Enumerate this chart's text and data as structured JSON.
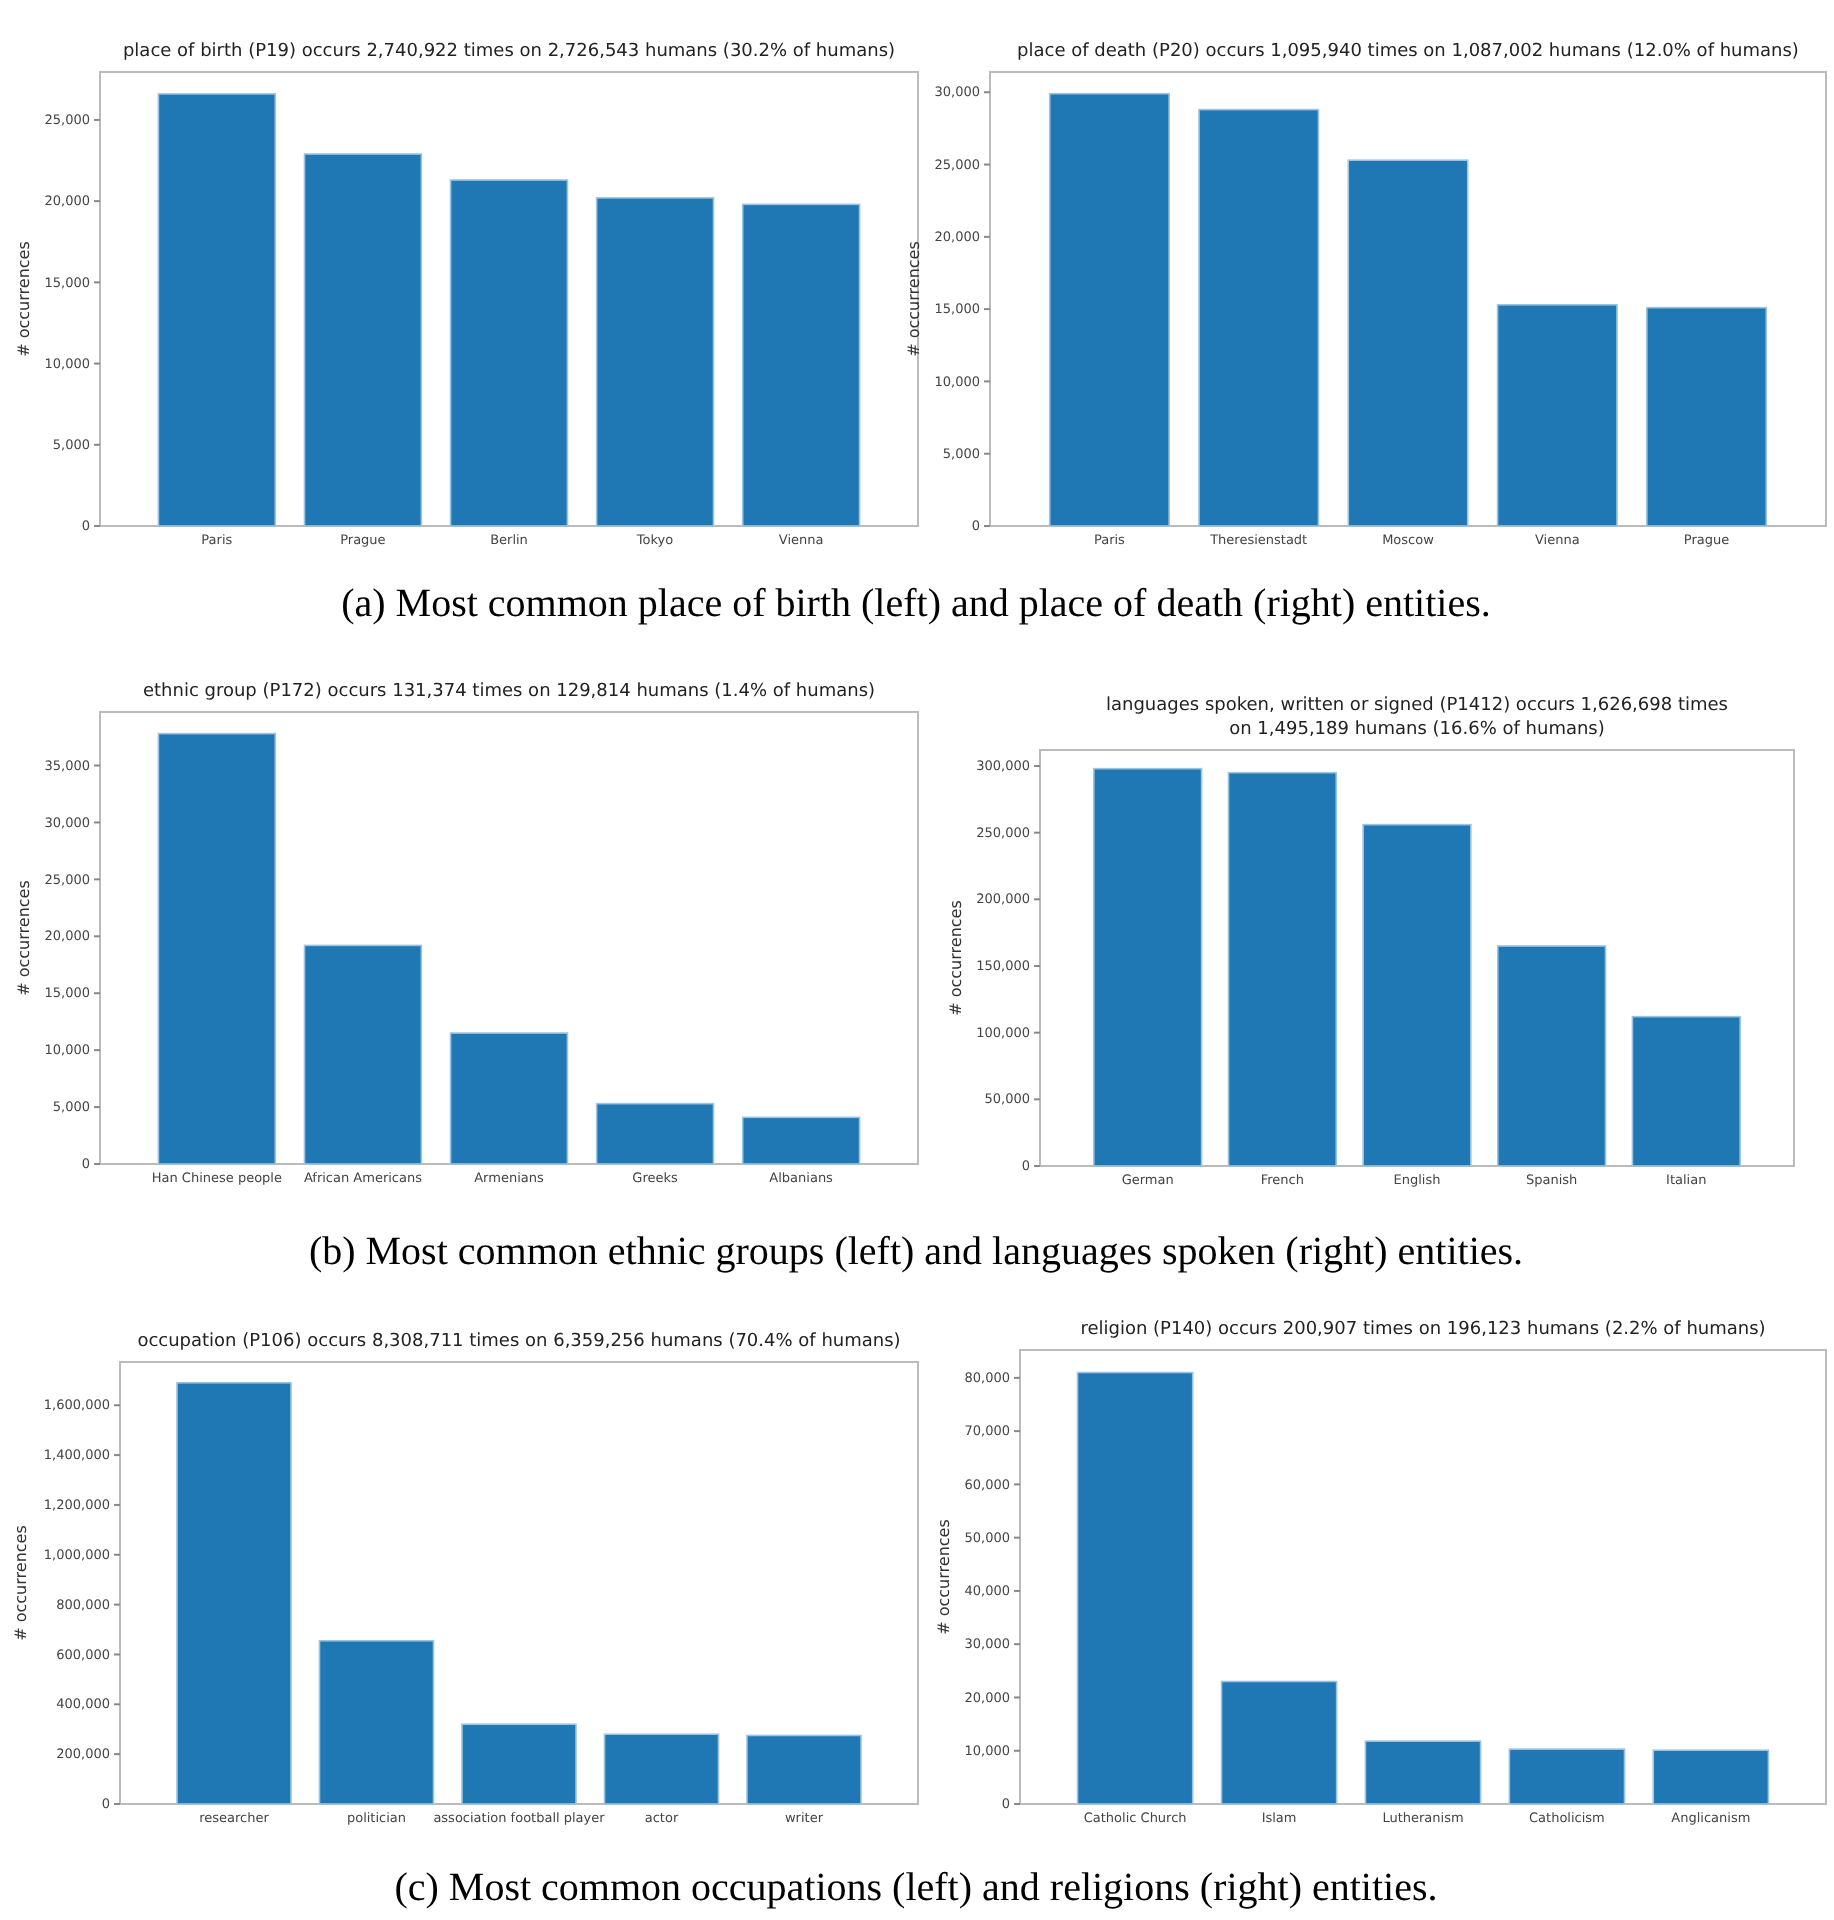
{
  "chart_data": [
    {
      "type": "bar",
      "title": "place of birth (P19) occurs 2,740,922 times on 2,726,543 humans (30.2% of humans)",
      "ylabel": "# occurrences",
      "categories": [
        "Paris",
        "Prague",
        "Berlin",
        "Tokyo",
        "Vienna"
      ],
      "values": [
        26600,
        22900,
        21300,
        20200,
        19800
      ],
      "color": "#1f77b4",
      "ylim": [
        0,
        27950
      ],
      "yticks": [
        {
          "value": 0,
          "label": "0"
        },
        {
          "value": 5000,
          "label": "5,000"
        },
        {
          "value": 10000,
          "label": "10,000"
        },
        {
          "value": 15000,
          "label": "15,000"
        },
        {
          "value": 20000,
          "label": "20,000"
        },
        {
          "value": 25000,
          "label": "25,000"
        }
      ],
      "annotations": [
        "(a) Most common place of birth (left) and place of death (right) entities."
      ]
    },
    {
      "type": "bar",
      "title": "place of death (P20) occurs 1,095,940 times on 1,087,002 humans (12.0% of humans)",
      "ylabel": "# occurrences",
      "categories": [
        "Paris",
        "Theresienstadt",
        "Moscow",
        "Vienna",
        "Prague"
      ],
      "values": [
        29900,
        28800,
        25300,
        15300,
        15100
      ],
      "color": "#1f77b4",
      "ylim": [
        0,
        31400
      ],
      "yticks": [
        {
          "value": 0,
          "label": "0"
        },
        {
          "value": 5000,
          "label": "5,000"
        },
        {
          "value": 10000,
          "label": "10,000"
        },
        {
          "value": 15000,
          "label": "15,000"
        },
        {
          "value": 20000,
          "label": "20,000"
        },
        {
          "value": 25000,
          "label": "25,000"
        },
        {
          "value": 30000,
          "label": "30,000"
        }
      ]
    },
    {
      "type": "bar",
      "title": "ethnic group (P172) occurs 131,374 times on 129,814 humans (1.4% of humans)",
      "ylabel": "# occurrences",
      "categories": [
        "Han Chinese people",
        "African Americans",
        "Armenians",
        "Greeks",
        "Albanians"
      ],
      "values": [
        37800,
        19200,
        11500,
        5300,
        4100
      ],
      "color": "#1f77b4",
      "ylim": [
        0,
        39700
      ],
      "yticks": [
        {
          "value": 0,
          "label": "0"
        },
        {
          "value": 5000,
          "label": "5,000"
        },
        {
          "value": 10000,
          "label": "10,000"
        },
        {
          "value": 15000,
          "label": "15,000"
        },
        {
          "value": 20000,
          "label": "20,000"
        },
        {
          "value": 25000,
          "label": "25,000"
        },
        {
          "value": 30000,
          "label": "30,000"
        },
        {
          "value": 35000,
          "label": "35,000"
        }
      ],
      "annotations": [
        "(b) Most common ethnic groups (left) and languages spoken (right) entities."
      ]
    },
    {
      "type": "bar",
      "title": "languages spoken, written or signed (P1412) occurs 1,626,698 times\non 1,495,189 humans (16.6% of humans)",
      "ylabel": "# occurrences",
      "categories": [
        "German",
        "French",
        "English",
        "Spanish",
        "Italian"
      ],
      "values": [
        298000,
        295000,
        256000,
        165000,
        112000
      ],
      "color": "#1f77b4",
      "ylim": [
        0,
        312000
      ],
      "yticks": [
        {
          "value": 0,
          "label": "0"
        },
        {
          "value": 50000,
          "label": "50,000"
        },
        {
          "value": 100000,
          "label": "100,000"
        },
        {
          "value": 150000,
          "label": "150,000"
        },
        {
          "value": 200000,
          "label": "200,000"
        },
        {
          "value": 250000,
          "label": "250,000"
        },
        {
          "value": 300000,
          "label": "300,000"
        }
      ]
    },
    {
      "type": "bar",
      "title": "occupation (P106) occurs 8,308,711 times on 6,359,256 humans (70.4% of humans)",
      "ylabel": "# occurrences",
      "categories": [
        "researcher",
        "politician",
        "association football player",
        "actor",
        "writer"
      ],
      "values": [
        1690000,
        655000,
        320000,
        280000,
        275000
      ],
      "color": "#1f77b4",
      "ylim": [
        0,
        1773500
      ],
      "yticks": [
        {
          "value": 0,
          "label": "0"
        },
        {
          "value": 200000,
          "label": "200,000"
        },
        {
          "value": 400000,
          "label": "400,000"
        },
        {
          "value": 600000,
          "label": "600,000"
        },
        {
          "value": 800000,
          "label": "800,000"
        },
        {
          "value": 1000000,
          "label": "1,000,000"
        },
        {
          "value": 1200000,
          "label": "1,200,000"
        },
        {
          "value": 1400000,
          "label": "1,400,000"
        },
        {
          "value": 1600000,
          "label": "1,600,000"
        }
      ],
      "annotations": [
        "(c) Most common occupations (left) and religions (right) entities."
      ]
    },
    {
      "type": "bar",
      "title": "religion (P140) occurs 200,907 times on 196,123 humans (2.2% of humans)",
      "ylabel": "# occurrences",
      "categories": [
        "Catholic Church",
        "Islam",
        "Lutheranism",
        "Catholicism",
        "Anglicanism"
      ],
      "values": [
        81000,
        23000,
        11800,
        10300,
        10100
      ],
      "color": "#1f77b4",
      "ylim": [
        0,
        85230
      ],
      "yticks": [
        {
          "value": 0,
          "label": "0"
        },
        {
          "value": 10000,
          "label": "10,000"
        },
        {
          "value": 20000,
          "label": "20,000"
        },
        {
          "value": 30000,
          "label": "30,000"
        },
        {
          "value": 40000,
          "label": "40,000"
        },
        {
          "value": 50000,
          "label": "50,000"
        },
        {
          "value": 60000,
          "label": "60,000"
        },
        {
          "value": 70000,
          "label": "70,000"
        },
        {
          "value": 80000,
          "label": "80,000"
        }
      ]
    }
  ]
}
